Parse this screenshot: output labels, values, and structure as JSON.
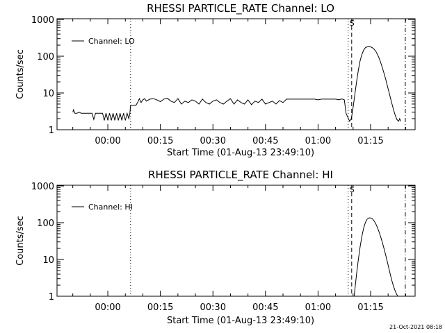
{
  "timestamp": "21-Oct-2021 08:18",
  "chart_data": [
    {
      "type": "line",
      "title": "RHESSI PARTICLE_RATE Channel: LO",
      "xlabel": "Start Time (01-Aug-13 23:49:10)",
      "ylabel": "Counts/sec",
      "yscale": "log",
      "ylim": [
        1,
        1000
      ],
      "xlim_minutes": [
        -14.5,
        87.7
      ],
      "x_tick_labels": [
        "00:00",
        "00:15",
        "00:30",
        "00:45",
        "01:00",
        "01:15"
      ],
      "x_tick_minutes": [
        0,
        15,
        30,
        45,
        60,
        75
      ],
      "y_tick_labels": [
        "1",
        "10",
        "100",
        "1000"
      ],
      "y_tick_values": [
        1,
        10,
        100,
        1000
      ],
      "legend": {
        "label": "Channel: LO",
        "placement": "top-left"
      },
      "markers": [
        {
          "style": "dotted",
          "x_minutes": 6.5
        },
        {
          "style": "dotted",
          "x_minutes": 68.6
        },
        {
          "style": "dashed",
          "x_minutes": 69.6,
          "label": "S"
        },
        {
          "style": "dash-dot",
          "x_minutes": 84.9
        }
      ],
      "series": [
        {
          "name": "Channel: LO",
          "x": [
            -10.0,
            -9.8,
            -9.4,
            -8.8,
            -8.2,
            -7.6,
            -7.0,
            -6.5,
            -6.0,
            -5.5,
            -5.0,
            -4.5,
            -4.0,
            -3.5,
            -3.0,
            -2.5,
            -2.0,
            -1.5,
            -1.0,
            -0.5,
            0.0,
            0.5,
            1.0,
            1.5,
            2.0,
            2.5,
            3.0,
            3.5,
            4.0,
            4.5,
            5.0,
            5.5,
            6.0,
            6.3,
            6.5,
            8.0,
            8.5,
            9.0,
            9.5,
            10.0,
            10.5,
            11.0,
            12.0,
            13.0,
            14.0,
            15.0,
            16.0,
            17.0,
            18.0,
            19.0,
            20.0,
            21.0,
            22.0,
            23.0,
            24.0,
            25.0,
            26.0,
            27.0,
            28.0,
            29.0,
            30.0,
            31.0,
            32.0,
            33.0,
            34.0,
            35.0,
            36.0,
            37.0,
            38.0,
            39.0,
            40.0,
            41.0,
            42.0,
            43.0,
            44.0,
            45.0,
            46.0,
            47.0,
            48.0,
            49.0,
            50.0,
            51.0,
            52.0,
            53.0,
            54.0,
            55.0,
            56.0,
            57.0,
            58.0,
            59.0,
            60.0,
            61.0,
            62.0,
            63.0,
            64.0,
            65.0,
            66.0,
            66.5,
            67.0,
            67.5,
            68.0,
            68.5,
            69.0,
            69.5,
            70.0,
            70.5,
            71.0,
            71.5,
            72.0,
            72.5,
            73.0,
            73.5,
            74.0,
            74.5,
            75.0,
            75.5,
            76.0,
            76.5,
            77.0,
            77.5,
            78.0,
            78.5,
            79.0,
            79.5,
            80.0,
            80.5,
            81.0,
            81.5,
            82.0,
            82.5,
            83.0,
            83.3,
            83.6
          ],
          "y": [
            3.0,
            3.5,
            2.8,
            2.8,
            3.0,
            2.8,
            2.8,
            2.8,
            2.8,
            2.8,
            2.8,
            2.8,
            1.9,
            2.8,
            2.8,
            2.8,
            2.8,
            2.8,
            1.8,
            2.8,
            1.8,
            2.8,
            1.8,
            2.8,
            1.8,
            2.8,
            1.8,
            2.8,
            1.8,
            2.8,
            1.8,
            2.8,
            2.0,
            2.8,
            4.6,
            4.6,
            5.5,
            7.0,
            5.5,
            6.5,
            7.0,
            6.0,
            6.8,
            7.0,
            6.5,
            5.8,
            6.8,
            7.2,
            6.0,
            5.5,
            7.0,
            5.0,
            6.0,
            5.5,
            6.5,
            6.0,
            5.0,
            6.8,
            5.5,
            5.0,
            6.0,
            6.5,
            5.5,
            5.0,
            6.0,
            7.0,
            5.0,
            6.5,
            5.5,
            5.0,
            6.5,
            4.8,
            6.0,
            5.5,
            6.8,
            5.0,
            5.5,
            6.0,
            5.0,
            6.2,
            5.5,
            6.8,
            6.8,
            6.8,
            6.8,
            6.8,
            6.8,
            6.8,
            6.8,
            6.8,
            6.5,
            6.8,
            6.8,
            6.8,
            6.8,
            6.8,
            6.5,
            6.8,
            6.8,
            6.5,
            2.8,
            2.2,
            1.7,
            2.0,
            4.0,
            9.0,
            20.0,
            42.0,
            75.0,
            110.0,
            145.0,
            170.0,
            180.0,
            182.0,
            180.0,
            170.0,
            155.0,
            135.0,
            110.0,
            85.0,
            62.0,
            44.0,
            30.0,
            20.0,
            13.0,
            8.5,
            5.5,
            3.6,
            2.5,
            1.9,
            1.7,
            2.0,
            1.7
          ]
        }
      ]
    },
    {
      "type": "line",
      "title": "RHESSI PARTICLE_RATE Channel: HI",
      "xlabel": "Start Time (01-Aug-13 23:49:10)",
      "ylabel": "Counts/sec",
      "yscale": "log",
      "ylim": [
        1,
        1000
      ],
      "xlim_minutes": [
        -14.5,
        87.7
      ],
      "x_tick_labels": [
        "00:00",
        "00:15",
        "00:30",
        "00:45",
        "01:00",
        "01:15"
      ],
      "x_tick_minutes": [
        0,
        15,
        30,
        45,
        60,
        75
      ],
      "y_tick_labels": [
        "1",
        "10",
        "100",
        "1000"
      ],
      "y_tick_values": [
        1,
        10,
        100,
        1000
      ],
      "legend": {
        "label": "Channel: HI",
        "placement": "top-left"
      },
      "markers": [
        {
          "style": "dotted",
          "x_minutes": 6.5
        },
        {
          "style": "dotted",
          "x_minutes": 68.6
        },
        {
          "style": "dashed",
          "x_minutes": 69.6,
          "label": "S"
        },
        {
          "style": "dash-dot",
          "x_minutes": 84.9
        }
      ],
      "series": [
        {
          "name": "Channel: HI",
          "x": [
            70.3,
            70.6,
            71.0,
            71.5,
            72.0,
            72.5,
            73.0,
            73.5,
            74.0,
            74.5,
            75.0,
            75.5,
            76.0,
            76.5,
            77.0,
            77.5,
            78.0,
            78.5,
            79.0,
            79.5,
            80.0,
            80.5,
            81.0,
            81.5,
            82.0,
            82.5,
            82.8
          ],
          "y": [
            1.0,
            1.8,
            4.0,
            10.0,
            22.0,
            42.0,
            70.0,
            100.0,
            125.0,
            135.0,
            135.0,
            128.0,
            112.0,
            92.0,
            72.0,
            53.0,
            38.0,
            26.0,
            17.0,
            11.0,
            7.0,
            4.4,
            2.8,
            1.9,
            1.4,
            1.1,
            1.0
          ]
        }
      ]
    }
  ]
}
